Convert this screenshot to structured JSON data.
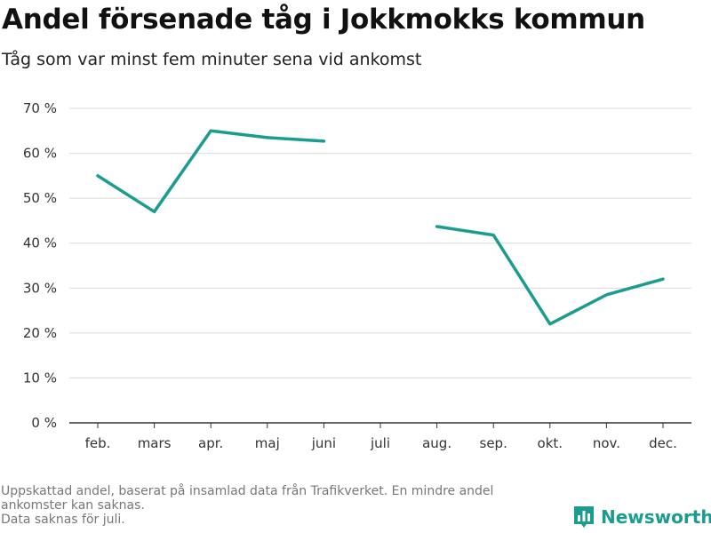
{
  "chart_data": {
    "type": "line",
    "title": "Andel försenade tåg i Jokkmokks kommun",
    "subtitle": "Tåg som var minst fem minuter sena vid ankomst",
    "categories": [
      "feb.",
      "mars",
      "apr.",
      "maj",
      "juni",
      "juli",
      "aug.",
      "sep.",
      "okt.",
      "nov.",
      "dec."
    ],
    "series": [
      {
        "values": [
          55,
          47,
          65,
          63.5,
          62.7,
          null,
          43.7,
          41.8,
          22,
          28.5,
          32
        ]
      }
    ],
    "ylim": [
      0,
      70
    ],
    "yticks": [
      0,
      10,
      20,
      30,
      40,
      50,
      60,
      70
    ],
    "ytick_labels": [
      "0 %",
      "10 %",
      "20 %",
      "30 %",
      "40 %",
      "50 %",
      "60 %",
      "70 %"
    ],
    "grid": true,
    "xlabel": "",
    "ylabel": "",
    "line_color": "#1a9c8f"
  },
  "notes": {
    "line1": "Uppskattad andel, baserat på insamlad data från Trafikverket. En mindre andel",
    "line2": "ankomster kan saknas.",
    "line3": "Data saknas för juli."
  },
  "brand": {
    "name": "Newsworthy",
    "logo_icon": "bar-chart-icon",
    "color": "#1a9c8f"
  }
}
